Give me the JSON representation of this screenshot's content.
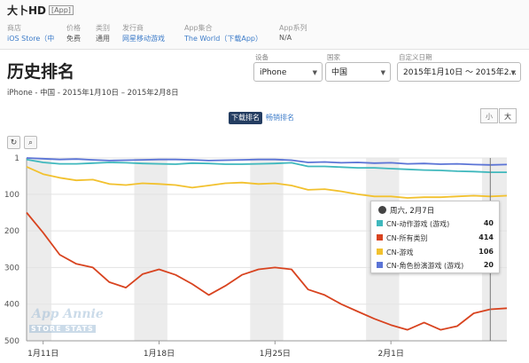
{
  "app": {
    "title": "大卜HD",
    "tag": "[App]"
  },
  "meta": [
    {
      "label": "商店",
      "value": "iOS Store（中",
      "link": true
    },
    {
      "label": "价格",
      "value": "免费",
      "link": false
    },
    {
      "label": "类别",
      "value": "通用",
      "link": false
    },
    {
      "label": "发行商",
      "value": "网星移动游戏",
      "link": true
    },
    {
      "label": "App集合",
      "value": "The World（下载App）",
      "link": true
    },
    {
      "label": "App系列",
      "value": "N/A",
      "link": false
    }
  ],
  "section_title": "历史排名",
  "subtitle": "iPhone - 中国 - 2015年1月10日 – 2015年2月8日",
  "controls": {
    "device": {
      "label": "设备",
      "value": "iPhone"
    },
    "country": {
      "label": "国家",
      "value": "中国"
    },
    "range": {
      "label": "自定义日期",
      "value": "2015年1月10日 ～ 2015年2..."
    }
  },
  "tabs": {
    "active": "下载排名",
    "inactive": "畅销排名"
  },
  "view_toggle": {
    "small": "小",
    "large": "大"
  },
  "icons": {
    "reset": "reset-icon",
    "zoom": "zoom-icon",
    "globe": "globe-icon"
  },
  "tooltip": {
    "header": "周六, 2月7日",
    "rows": [
      {
        "label": "CN-动作游戏 (游戏)",
        "value": "40",
        "color": "#3fb8bd"
      },
      {
        "label": "CN-所有类别",
        "value": "414",
        "color": "#d8431f"
      },
      {
        "label": "CN-游戏",
        "value": "106",
        "color": "#f2c12e"
      },
      {
        "label": "CN-角色扮演游戏 (游戏)",
        "value": "20",
        "color": "#5b74d6"
      }
    ]
  },
  "watermark": {
    "line1": "App Annie",
    "line2": "STORE STATS"
  },
  "chart_data": {
    "type": "line",
    "y_axis": {
      "reversed": true,
      "ylim": [
        1,
        500
      ],
      "ticks": [
        "1",
        "100",
        "200",
        "300",
        "400",
        "500"
      ]
    },
    "x_ticks": [
      "1月11日",
      "1月18日",
      "1月25日",
      "2月1日"
    ],
    "x": [
      "1月10日",
      "1月11日",
      "1月12日",
      "1月13日",
      "1月14日",
      "1月15日",
      "1月16日",
      "1月17日",
      "1月18日",
      "1月19日",
      "1月20日",
      "1月21日",
      "1月22日",
      "1月23日",
      "1月24日",
      "1月25日",
      "1月26日",
      "1月27日",
      "1月28日",
      "1月29日",
      "1月30日",
      "1月31日",
      "2月1日",
      "2月2日",
      "2月3日",
      "2月4日",
      "2月5日",
      "2月6日",
      "2月7日",
      "2月8日"
    ],
    "series": [
      {
        "name": "CN-动作游戏 (游戏)",
        "color": "#3fb8bd",
        "values": [
          5,
          13,
          17,
          17,
          15,
          13,
          14,
          16,
          17,
          18,
          15,
          16,
          18,
          18,
          17,
          16,
          14,
          24,
          24,
          26,
          28,
          28,
          30,
          32,
          34,
          35,
          37,
          38,
          40,
          40
        ]
      },
      {
        "name": "CN-所有类别",
        "color": "#d8431f",
        "values": [
          150,
          205,
          265,
          290,
          300,
          340,
          355,
          318,
          305,
          320,
          345,
          375,
          350,
          320,
          305,
          300,
          305,
          360,
          375,
          400,
          420,
          440,
          457,
          470,
          450,
          470,
          460,
          425,
          414,
          411
        ]
      },
      {
        "name": "CN-游戏",
        "color": "#f2c12e",
        "values": [
          25,
          45,
          55,
          62,
          60,
          72,
          75,
          70,
          72,
          75,
          82,
          76,
          70,
          68,
          72,
          70,
          76,
          88,
          86,
          92,
          100,
          106,
          106,
          110,
          108,
          108,
          106,
          104,
          106,
          104
        ]
      },
      {
        "name": "CN-角色扮演游戏 (游戏)",
        "color": "#5b74d6",
        "values": [
          1,
          3,
          5,
          4,
          6,
          8,
          7,
          6,
          5,
          5,
          6,
          8,
          7,
          6,
          5,
          5,
          7,
          13,
          12,
          14,
          13,
          15,
          14,
          17,
          16,
          18,
          17,
          19,
          20,
          19
        ]
      }
    ]
  }
}
